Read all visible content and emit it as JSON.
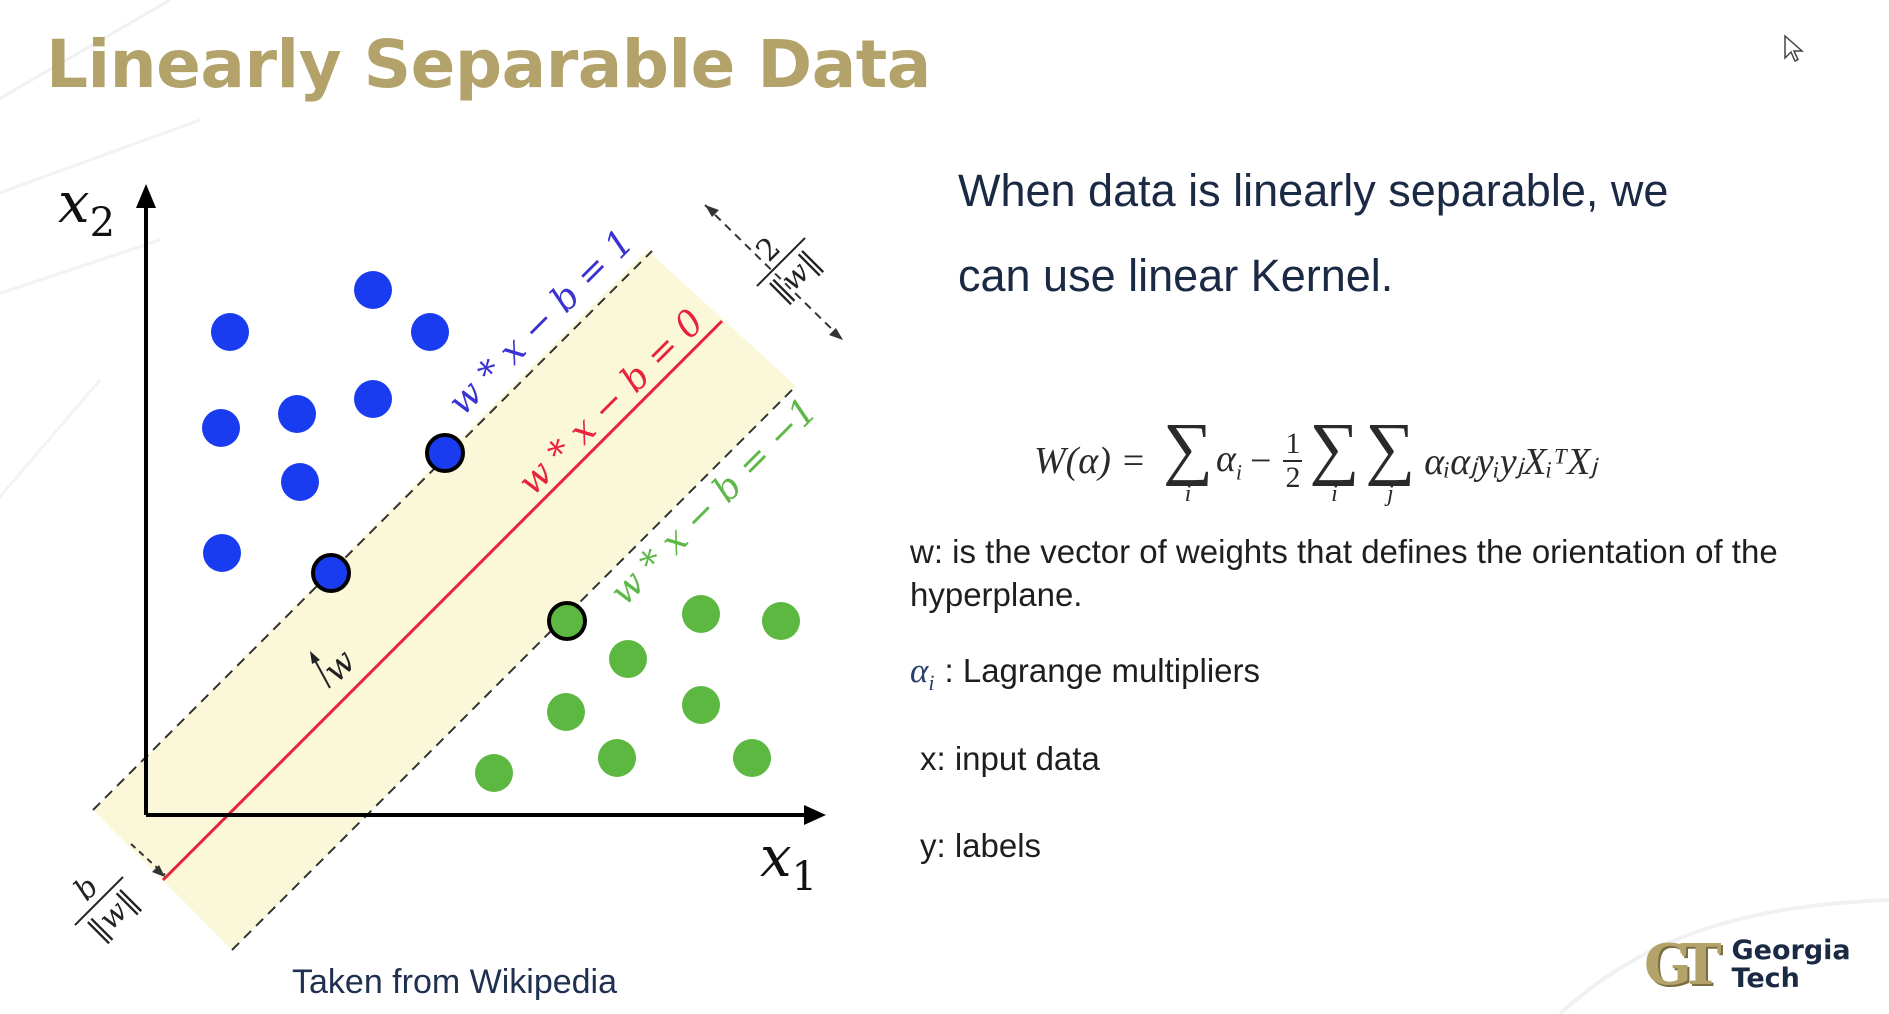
{
  "slide": {
    "title": "Linearly Separable Data",
    "lead_line1": "When data is linearly separable, we",
    "lead_line2": "can use linear Kernel.",
    "caption": "Taken from Wikipedia"
  },
  "formula": {
    "lhs": "W(α) =",
    "alpha_i": "α",
    "minus": "−",
    "frac_num": "1",
    "frac_den": "2",
    "sub_i": "i",
    "sub_j": "j",
    "term": "αᵢαⱼyᵢyⱼXᵢᵀXⱼ"
  },
  "definitions": {
    "w": "w: is the vector of weights that defines the orientation of the hyperplane.",
    "alpha_symbol": "α",
    "alpha_sub": "i",
    "alpha": ": Lagrange multipliers",
    "x": "x: input data",
    "y": "y: labels"
  },
  "diagram": {
    "axis_x_label": "x",
    "axis_x_sub": "1",
    "axis_y_label": "x",
    "axis_y_sub": "2",
    "line_upper_label": "w * x − b = 1",
    "line_middle_label": "w * x − b = 0",
    "line_lower_label": "w * x − b = −1",
    "margin_num": "2",
    "margin_den": "‖w‖",
    "offset_num": "b",
    "offset_den": "‖w‖",
    "normal_label": "w",
    "colors": {
      "blue_class": "#1a3cf0",
      "green_class": "#5cb840",
      "separator": "#e8223a",
      "margin_band": "#fbf7d9",
      "upper_label": "#3a33d0",
      "lower_label": "#5db847"
    }
  },
  "logo": {
    "mark": "GT",
    "line1": "Georgia",
    "line2": "Tech"
  },
  "theme": {
    "title_gold": "#B3A36A",
    "navy": "#1B2A44"
  }
}
